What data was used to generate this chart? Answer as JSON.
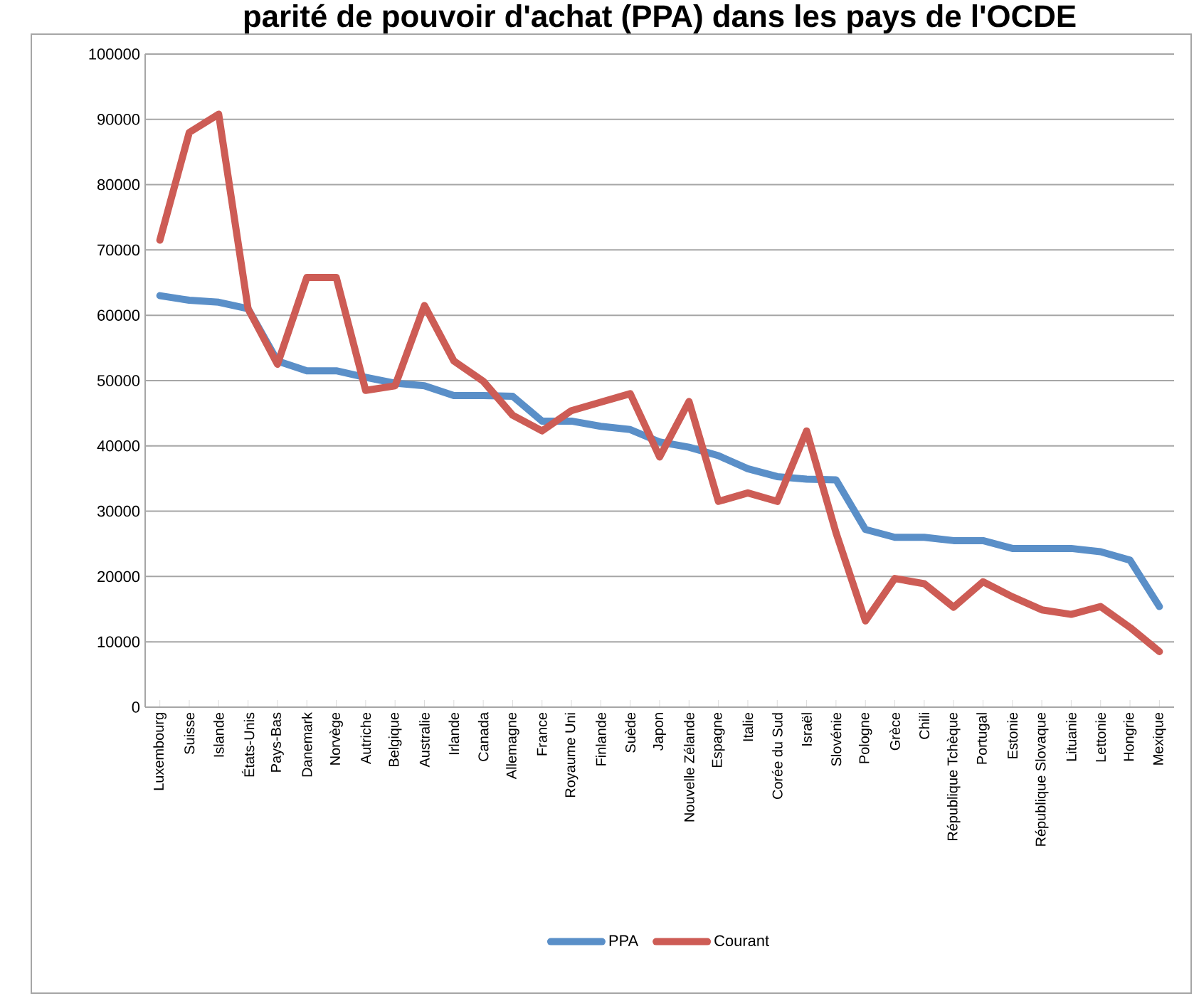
{
  "chart_data": {
    "type": "line",
    "title": "parité de pouvoir d'achat (PPA) dans les pays de l'OCDE",
    "categories": [
      "Luxembourg",
      "Suisse",
      "Islande",
      "États-Unis",
      "Pays-Bas",
      "Danemark",
      "Norvège",
      "Autriche",
      "Belgique",
      "Australie",
      "Irlande",
      "Canada",
      "Allemagne",
      "France",
      "Royaume Uni",
      "Finlande",
      "Suède",
      "Japon",
      "Nouvelle Zélande",
      "Espagne",
      "Italie",
      "Corée du Sud",
      "Israël",
      "Slovénie",
      "Pologne",
      "Grèce",
      "Chili",
      "République Tchèque",
      "Portugal",
      "Estonie",
      "République Slovaque",
      "Lituanie",
      "Lettonie",
      "Hongrie",
      "Mexique"
    ],
    "series": [
      {
        "name": "PPA",
        "color": "#5a8fc8",
        "values": [
          63000,
          62300,
          62000,
          61000,
          53000,
          51500,
          51500,
          50500,
          49600,
          49200,
          47700,
          47700,
          47600,
          43800,
          43800,
          43000,
          42500,
          40600,
          39800,
          38500,
          36500,
          35300,
          34900,
          34800,
          27200,
          26000,
          26000,
          25500,
          25500,
          24300,
          24300,
          24300,
          23800,
          22500,
          15400
        ]
      },
      {
        "name": "Courant",
        "color": "#cd5c55",
        "values": [
          71500,
          88000,
          90800,
          61000,
          52500,
          65800,
          65800,
          48500,
          49200,
          61500,
          53000,
          49900,
          44700,
          42300,
          45400,
          46700,
          48000,
          38300,
          46800,
          31500,
          32800,
          31500,
          42300,
          26700,
          13200,
          19700,
          18900,
          15300,
          19200,
          16900,
          14900,
          14200,
          15400,
          12200,
          8500
        ]
      }
    ],
    "ylim": [
      0,
      100000
    ],
    "yticks": [
      0,
      10000,
      20000,
      30000,
      40000,
      50000,
      60000,
      70000,
      80000,
      90000,
      100000
    ],
    "grid": "y",
    "legend": "bottom",
    "marker": "none",
    "line_style": "solid"
  }
}
